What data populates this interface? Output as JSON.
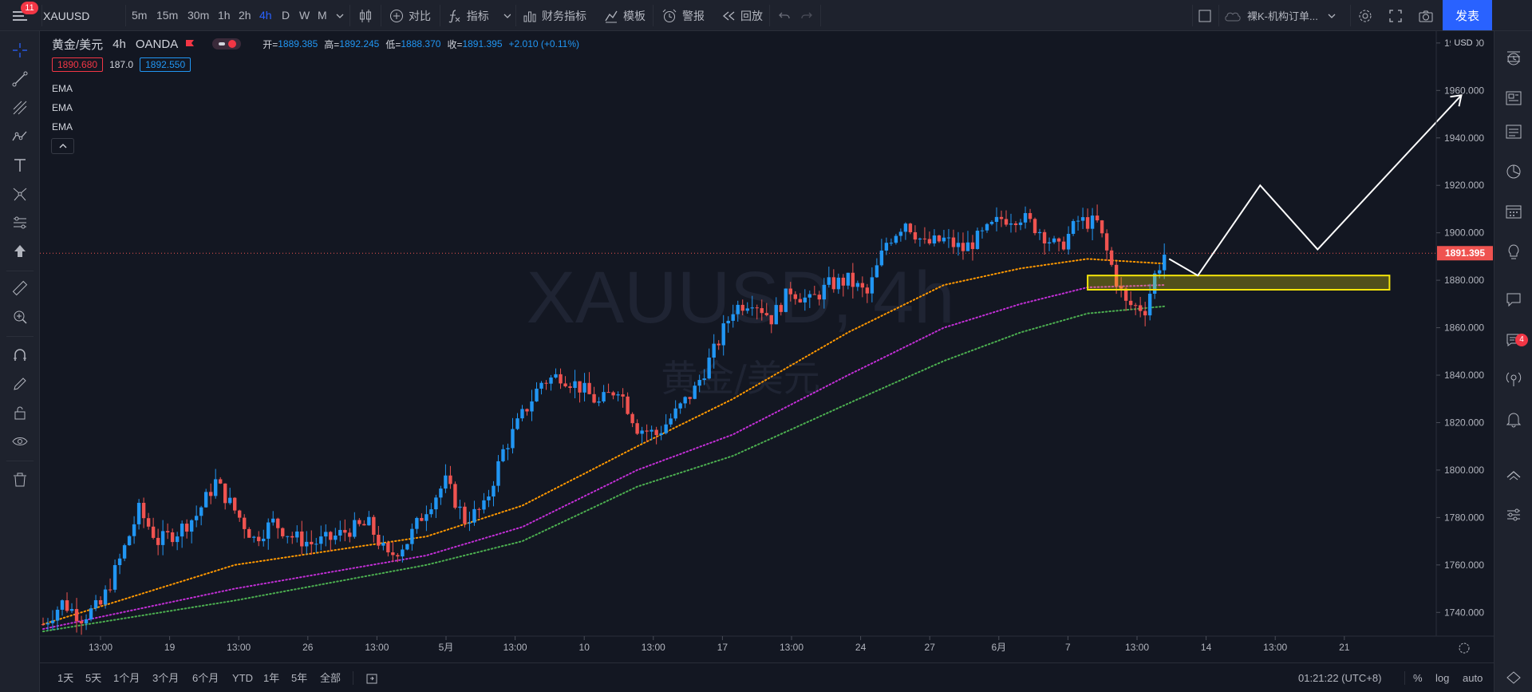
{
  "topbar": {
    "menu_badge": "11",
    "symbol": "XAUUSD",
    "intervals": [
      "5m",
      "15m",
      "30m",
      "1h",
      "2h",
      "4h",
      "D",
      "W",
      "M"
    ],
    "active_interval": "4h",
    "compare": "对比",
    "indicators": "指标",
    "financials": "财务指标",
    "templates": "模板",
    "alerts": "警报",
    "replay": "回放",
    "layout_name": "裸K-机构订单...",
    "publish": "发表"
  },
  "legend": {
    "title": "黄金/美元",
    "interval": "4h",
    "source": "OANDA",
    "open_label": "开=",
    "open": "1889.385",
    "high_label": "高=",
    "high": "1892.245",
    "low_label": "低=",
    "low": "1888.370",
    "close_label": "收=",
    "close": "1891.395",
    "change": "+2.010 (+0.11%)",
    "bid": "1890.680",
    "spread": "187.0",
    "ask": "1892.550",
    "indicators": [
      "EMA",
      "EMA",
      "EMA"
    ]
  },
  "watermark": {
    "symbol": "XAUUSD, 4h",
    "name": "黄金/美元"
  },
  "price_axis": {
    "currency": "USD",
    "ticks": [
      "1980.000",
      "1960.000",
      "1940.000",
      "1920.000",
      "1900.000",
      "1880.000",
      "1860.000",
      "1840.000",
      "1820.000",
      "1800.000",
      "1780.000",
      "1760.000",
      "1740.000"
    ],
    "last_price": "1891.395"
  },
  "time_axis": {
    "labels": [
      "13:00",
      "19",
      "13:00",
      "26",
      "13:00",
      "5月",
      "13:00",
      "10",
      "13:00",
      "17",
      "13:00",
      "24",
      "27",
      "6月",
      "7",
      "13:00",
      "14",
      "13:00",
      "21"
    ]
  },
  "bottombar": {
    "ranges": [
      "1天",
      "5天",
      "1个月",
      "3个月",
      "6个月",
      "YTD",
      "1年",
      "5年",
      "全部"
    ],
    "time": "01:21:22 (UTC+8)",
    "percent": "%",
    "log": "log",
    "auto": "auto"
  },
  "right_badge": "4",
  "colors": {
    "background": "#131722",
    "up": "#2196f3",
    "down": "#ef5350",
    "ema_fast": "#ff9800",
    "ema_mid": "#c22fd6",
    "ema_slow": "#4caf50",
    "zone": "#f5e50a",
    "accent": "#2962ff"
  },
  "chart_data": {
    "type": "candlestick",
    "symbol": "XAUUSD",
    "ylim": [
      1730,
      1985
    ],
    "close_path": [
      [
        0,
        1735
      ],
      [
        4,
        1744
      ],
      [
        8,
        1738
      ],
      [
        12,
        1743
      ],
      [
        16,
        1762
      ],
      [
        20,
        1783
      ],
      [
        24,
        1770
      ],
      [
        28,
        1774
      ],
      [
        32,
        1781
      ],
      [
        36,
        1795
      ],
      [
        40,
        1783
      ],
      [
        44,
        1771
      ],
      [
        48,
        1778
      ],
      [
        52,
        1772
      ],
      [
        56,
        1769
      ],
      [
        60,
        1771
      ],
      [
        64,
        1775
      ],
      [
        68,
        1777
      ],
      [
        72,
        1763
      ],
      [
        76,
        1770
      ],
      [
        80,
        1784
      ],
      [
        84,
        1795
      ],
      [
        88,
        1779
      ],
      [
        92,
        1784
      ],
      [
        96,
        1808
      ],
      [
        100,
        1823
      ],
      [
        104,
        1837
      ],
      [
        108,
        1840
      ],
      [
        112,
        1835
      ],
      [
        116,
        1828
      ],
      [
        120,
        1835
      ],
      [
        124,
        1818
      ],
      [
        128,
        1815
      ],
      [
        132,
        1824
      ],
      [
        136,
        1834
      ],
      [
        140,
        1850
      ],
      [
        144,
        1868
      ],
      [
        148,
        1872
      ],
      [
        152,
        1864
      ],
      [
        156,
        1876
      ],
      [
        160,
        1871
      ],
      [
        164,
        1878
      ],
      [
        168,
        1880
      ],
      [
        172,
        1874
      ],
      [
        176,
        1896
      ],
      [
        180,
        1905
      ],
      [
        184,
        1895
      ],
      [
        188,
        1897
      ],
      [
        192,
        1893
      ],
      [
        196,
        1899
      ],
      [
        200,
        1906
      ],
      [
        204,
        1907
      ],
      [
        208,
        1901
      ],
      [
        212,
        1893
      ],
      [
        216,
        1905
      ],
      [
        220,
        1904
      ],
      [
        224,
        1880
      ],
      [
        226,
        1870
      ],
      [
        230,
        1868
      ],
      [
        232,
        1882
      ],
      [
        234,
        1891
      ]
    ],
    "ema_fast_path": [
      [
        0,
        1735
      ],
      [
        40,
        1760
      ],
      [
        80,
        1772
      ],
      [
        100,
        1785
      ],
      [
        124,
        1810
      ],
      [
        144,
        1830
      ],
      [
        168,
        1858
      ],
      [
        188,
        1878
      ],
      [
        204,
        1885
      ],
      [
        218,
        1889
      ],
      [
        234,
        1887
      ]
    ],
    "ema_mid_path": [
      [
        0,
        1733
      ],
      [
        40,
        1750
      ],
      [
        80,
        1764
      ],
      [
        100,
        1776
      ],
      [
        124,
        1800
      ],
      [
        144,
        1815
      ],
      [
        168,
        1840
      ],
      [
        188,
        1860
      ],
      [
        204,
        1870
      ],
      [
        218,
        1877
      ],
      [
        234,
        1878
      ]
    ],
    "ema_slow_path": [
      [
        0,
        1732
      ],
      [
        40,
        1745
      ],
      [
        80,
        1760
      ],
      [
        100,
        1770
      ],
      [
        124,
        1793
      ],
      [
        144,
        1806
      ],
      [
        168,
        1828
      ],
      [
        188,
        1846
      ],
      [
        204,
        1858
      ],
      [
        218,
        1866
      ],
      [
        234,
        1869
      ]
    ],
    "zone": {
      "from_bar": 218,
      "to_bar": 281,
      "y_low": 1876,
      "y_high": 1882
    },
    "projection": [
      [
        235,
        1889
      ],
      [
        241,
        1882
      ],
      [
        254,
        1920
      ],
      [
        266,
        1893
      ],
      [
        296,
        1958
      ]
    ]
  }
}
